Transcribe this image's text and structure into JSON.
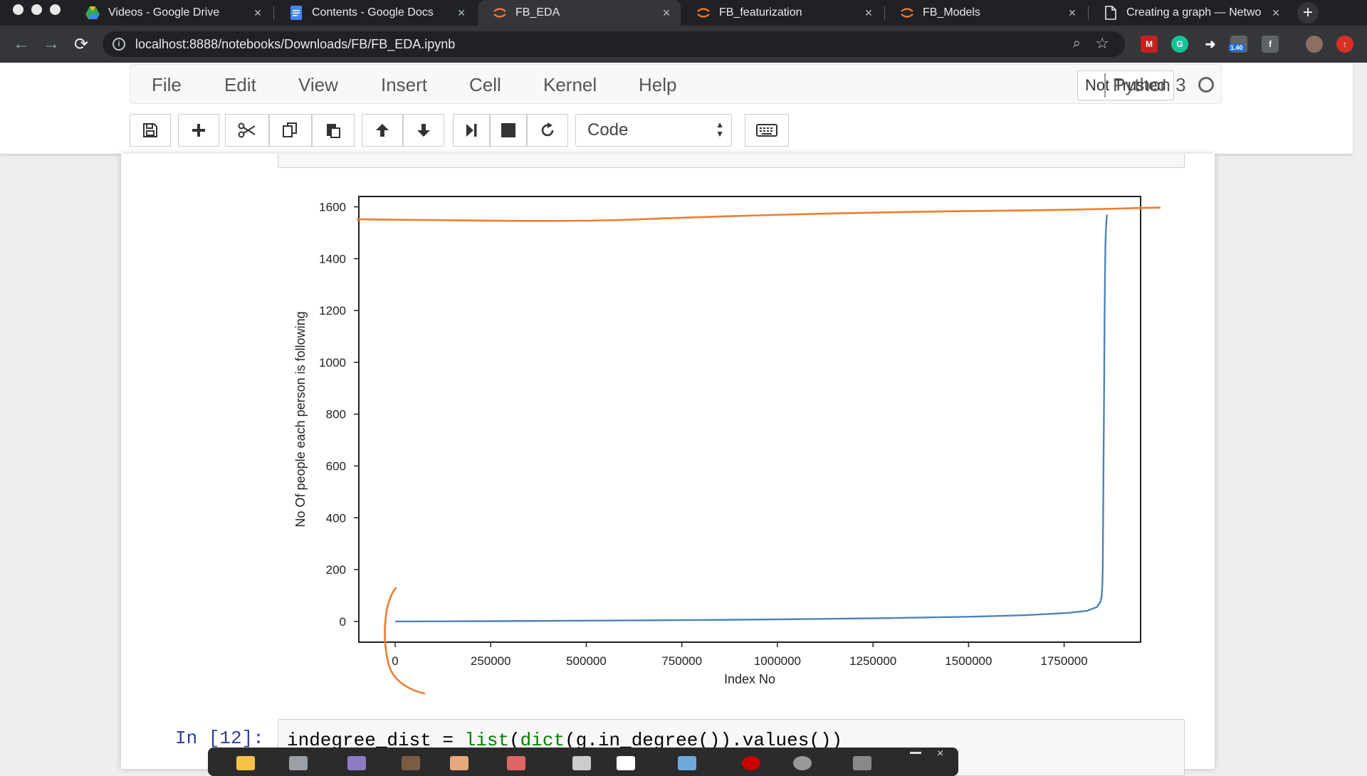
{
  "browser": {
    "tabs": [
      {
        "title": "Videos - Google Drive",
        "icon": "google-drive-icon",
        "active": false
      },
      {
        "title": "Contents - Google Docs",
        "icon": "google-docs-icon",
        "active": false
      },
      {
        "title": "FB_EDA",
        "icon": "jupyter-icon",
        "active": true
      },
      {
        "title": "FB_featurization",
        "icon": "jupyter-icon",
        "active": false
      },
      {
        "title": "FB_Models",
        "icon": "jupyter-icon",
        "active": false
      },
      {
        "title": "Creating a graph — Netwo",
        "icon": "document-icon",
        "active": false
      }
    ],
    "url": "localhost:8888/notebooks/Downloads/FB/FB_EDA.ipynb",
    "extension_badge": "1.40"
  },
  "notebook": {
    "menu": [
      "File",
      "Edit",
      "View",
      "Insert",
      "Cell",
      "Kernel",
      "Help"
    ],
    "trust_status": "Not Trusted",
    "kernel_name": "Python 3",
    "cell_type": "Code",
    "toolbar_icons": [
      "save-icon",
      "plus-icon",
      "scissors-icon",
      "copy-icon",
      "paste-icon",
      "arrow-up-icon",
      "arrow-down-icon",
      "step-forward-icon",
      "stop-icon",
      "restart-icon",
      "keyboard-icon"
    ],
    "next_cell": {
      "prompt": "In [12]:",
      "code_parts": [
        "indegree_dist = ",
        "list",
        "(",
        "dict",
        "(g.in_degree()).values())"
      ]
    }
  },
  "chart_data": {
    "type": "line",
    "title": "",
    "xlabel": "Index No",
    "ylabel": "No Of people each person is following",
    "xlim": [
      -95000,
      1950000
    ],
    "ylim": [
      -80,
      1640
    ],
    "xticks": [
      0,
      250000,
      500000,
      750000,
      1000000,
      1250000,
      1500000,
      1750000
    ],
    "yticks": [
      0,
      200,
      400,
      600,
      800,
      1000,
      1200,
      1400,
      1600
    ],
    "line_color": "#4c84bb",
    "series": [
      {
        "x": [
          0,
          250000,
          500000,
          750000,
          1000000,
          1250000,
          1500000,
          1650000,
          1760000,
          1810000,
          1835000,
          1845000,
          1848000,
          1850000,
          1851000,
          1852000,
          1853000,
          1854000,
          1855000,
          1856000,
          1857000,
          1858000,
          1859000,
          1860000,
          1861000,
          1862000
        ],
        "y": [
          0,
          1,
          3,
          5,
          8,
          12,
          18,
          24,
          33,
          41,
          55,
          75,
          95,
          140,
          200,
          400,
          600,
          800,
          1000,
          1200,
          1350,
          1450,
          1500,
          1530,
          1550,
          1570
        ]
      }
    ],
    "annotation_color": "#ed7d31"
  }
}
